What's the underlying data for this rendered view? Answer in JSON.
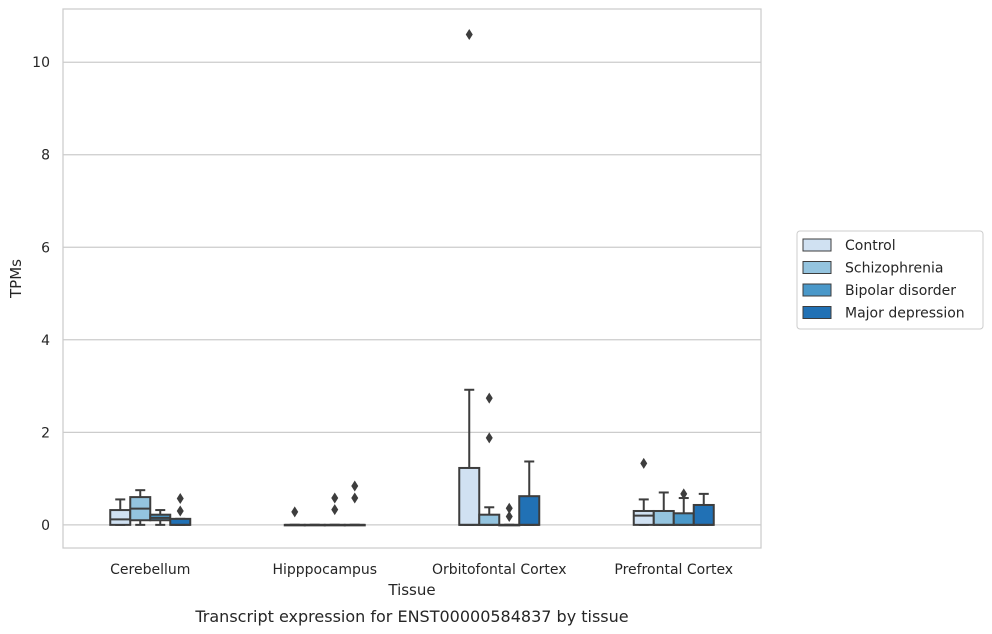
{
  "chart_data": {
    "type": "box",
    "title": "",
    "caption": "Transcript expression for ENST00000584837 by tissue",
    "xlabel": "Tissue",
    "ylabel": "TPMs",
    "ylim": [
      -0.5,
      11.15
    ],
    "yticks": [
      0,
      2,
      4,
      6,
      8,
      10
    ],
    "grid": "horizontal",
    "legend_position": "right",
    "categories": [
      "Cerebellum",
      "Hipppocampus",
      "Orbitofontal Cortex",
      "Prefrontal Cortex"
    ],
    "series": [
      {
        "name": "Control",
        "color": "#d0e1f2",
        "boxes": [
          {
            "q1": 0.0,
            "median": 0.12,
            "q3": 0.32,
            "whisker_low": 0.0,
            "whisker_high": 0.55,
            "outliers": []
          },
          {
            "q1": 0.0,
            "median": 0.0,
            "q3": 0.0,
            "whisker_low": 0.0,
            "whisker_high": 0.0,
            "outliers": [
              0.28
            ]
          },
          {
            "q1": 0.0,
            "median": 0.0,
            "q3": 1.23,
            "whisker_low": 0.0,
            "whisker_high": 2.92,
            "outliers": [
              10.6
            ]
          },
          {
            "q1": 0.0,
            "median": 0.2,
            "q3": 0.3,
            "whisker_low": 0.0,
            "whisker_high": 0.55,
            "outliers": [
              1.33
            ]
          }
        ]
      },
      {
        "name": "Schizophrenia",
        "color": "#94c4df",
        "boxes": [
          {
            "q1": 0.1,
            "median": 0.35,
            "q3": 0.6,
            "whisker_low": 0.0,
            "whisker_high": 0.75,
            "outliers": []
          },
          {
            "q1": 0.0,
            "median": 0.0,
            "q3": 0.0,
            "whisker_low": 0.0,
            "whisker_high": 0.0,
            "outliers": []
          },
          {
            "q1": 0.0,
            "median": 0.0,
            "q3": 0.22,
            "whisker_low": 0.0,
            "whisker_high": 0.38,
            "outliers": [
              1.88,
              2.74
            ]
          },
          {
            "q1": 0.0,
            "median": 0.0,
            "q3": 0.3,
            "whisker_low": 0.0,
            "whisker_high": 0.7,
            "outliers": []
          }
        ]
      },
      {
        "name": "Bipolar disorder",
        "color": "#4a98c9",
        "boxes": [
          {
            "q1": 0.1,
            "median": 0.15,
            "q3": 0.22,
            "whisker_low": 0.0,
            "whisker_high": 0.32,
            "outliers": []
          },
          {
            "q1": 0.0,
            "median": 0.0,
            "q3": 0.0,
            "whisker_low": 0.0,
            "whisker_high": 0.0,
            "outliers": [
              0.33,
              0.58
            ]
          },
          {
            "q1": 0.0,
            "median": 0.0,
            "q3": 0.0,
            "whisker_low": 0.0,
            "whisker_high": 0.0,
            "outliers": [
              0.18,
              0.36
            ]
          },
          {
            "q1": 0.0,
            "median": 0.0,
            "q3": 0.25,
            "whisker_low": 0.0,
            "whisker_high": 0.58,
            "outliers": [
              0.67
            ]
          }
        ]
      },
      {
        "name": "Major depression",
        "color": "#2171b5",
        "boxes": [
          {
            "q1": 0.0,
            "median": 0.0,
            "q3": 0.13,
            "whisker_low": 0.0,
            "whisker_high": 0.13,
            "outliers": [
              0.3,
              0.57
            ]
          },
          {
            "q1": 0.0,
            "median": 0.0,
            "q3": 0.0,
            "whisker_low": 0.0,
            "whisker_high": 0.0,
            "outliers": [
              0.58,
              0.84
            ]
          },
          {
            "q1": 0.0,
            "median": 0.0,
            "q3": 0.62,
            "whisker_low": 0.0,
            "whisker_high": 1.37,
            "outliers": []
          },
          {
            "q1": 0.0,
            "median": 0.0,
            "q3": 0.43,
            "whisker_low": 0.0,
            "whisker_high": 0.67,
            "outliers": []
          }
        ]
      }
    ]
  }
}
